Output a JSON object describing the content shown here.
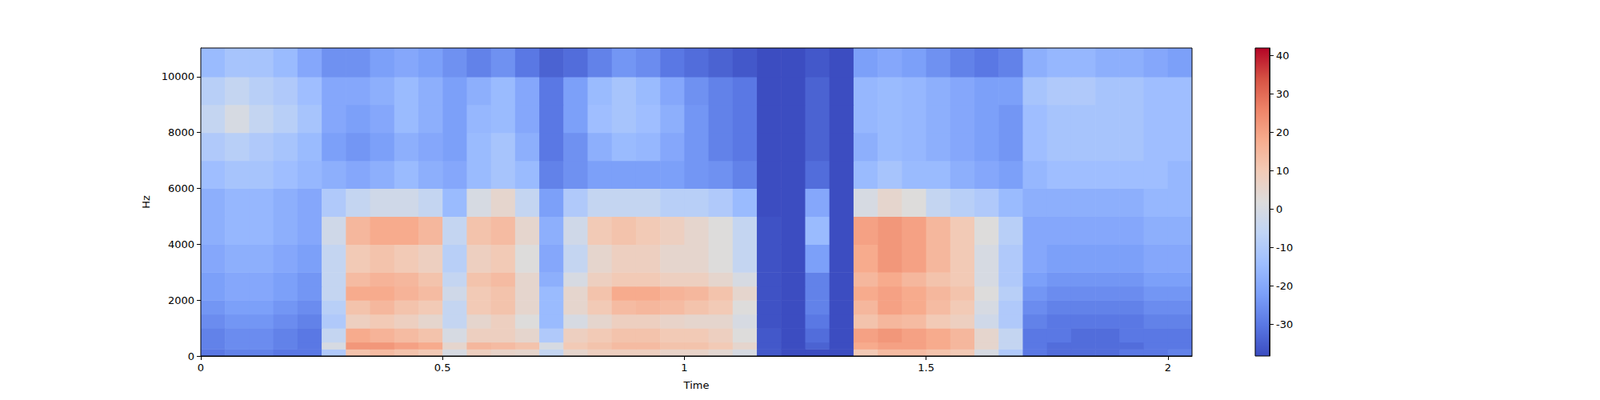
{
  "chart_data": {
    "type": "heatmap",
    "xlabel": "Time",
    "ylabel": "Hz",
    "color": "coolwarm",
    "grid": false,
    "xlim": [
      0,
      2.05
    ],
    "xticks": [
      0,
      0.5,
      1,
      1.5,
      2
    ],
    "ylim": [
      0,
      11025
    ],
    "yticks": [
      0,
      2000,
      4000,
      6000,
      8000,
      10000
    ],
    "x_edges": [
      0,
      0.05,
      0.1,
      0.15,
      0.2,
      0.25,
      0.3,
      0.35,
      0.4,
      0.45,
      0.5,
      0.55,
      0.6,
      0.65,
      0.7,
      0.75,
      0.8,
      0.85,
      0.9,
      0.95,
      1.0,
      1.05,
      1.1,
      1.15,
      1.2,
      1.25,
      1.3,
      1.35,
      1.4,
      1.45,
      1.5,
      1.55,
      1.6,
      1.65,
      1.7,
      1.75,
      1.8,
      1.85,
      1.9,
      1.95,
      2.0,
      2.05
    ],
    "y_edges": [
      0,
      250,
      500,
      1000,
      1500,
      2000,
      2500,
      3000,
      4000,
      5000,
      6000,
      7000,
      8000,
      9000,
      10000,
      11025
    ],
    "cells": [
      [
        -30,
        -28,
        -28,
        -30,
        -30,
        -10,
        12,
        14,
        12,
        10,
        0,
        8,
        6,
        5,
        -5,
        5,
        8,
        8,
        8,
        6,
        6,
        4,
        0,
        -36,
        -38,
        -38,
        -38,
        10,
        14,
        14,
        12,
        10,
        0,
        -10,
        -30,
        -32,
        -32,
        -32,
        -30,
        -30,
        -28
      ],
      [
        -28,
        -26,
        -26,
        -28,
        -30,
        0,
        22,
        22,
        20,
        18,
        5,
        15,
        14,
        12,
        0,
        10,
        12,
        14,
        14,
        12,
        12,
        10,
        5,
        -36,
        -38,
        -34,
        -38,
        18,
        20,
        20,
        18,
        15,
        5,
        -5,
        -30,
        -32,
        -32,
        -32,
        -32,
        -30,
        -30
      ],
      [
        -28,
        -26,
        -26,
        -28,
        -30,
        -5,
        18,
        16,
        14,
        12,
        0,
        8,
        8,
        5,
        -10,
        8,
        10,
        12,
        12,
        10,
        10,
        8,
        2,
        -36,
        -38,
        -32,
        -38,
        20,
        22,
        20,
        18,
        15,
        5,
        -5,
        -30,
        -30,
        -32,
        -32,
        -30,
        -30,
        -30
      ],
      [
        -26,
        -24,
        -24,
        -26,
        -28,
        -10,
        8,
        10,
        8,
        5,
        -5,
        5,
        8,
        2,
        -15,
        0,
        5,
        8,
        8,
        6,
        5,
        5,
        0,
        -37,
        -38,
        -30,
        -38,
        12,
        15,
        14,
        10,
        8,
        -2,
        -10,
        -28,
        -30,
        -30,
        -30,
        -30,
        -28,
        -28
      ],
      [
        -24,
        -22,
        -22,
        -24,
        -26,
        -8,
        12,
        15,
        12,
        10,
        -5,
        10,
        12,
        5,
        -15,
        5,
        10,
        14,
        15,
        14,
        12,
        10,
        2,
        -37,
        -38,
        -28,
        -38,
        15,
        20,
        18,
        14,
        10,
        0,
        -10,
        -26,
        -28,
        -28,
        -28,
        -28,
        -26,
        -26
      ],
      [
        -22,
        -20,
        -20,
        -22,
        -24,
        -5,
        18,
        18,
        16,
        14,
        -2,
        10,
        12,
        5,
        -15,
        5,
        12,
        18,
        18,
        16,
        15,
        12,
        5,
        -37,
        -38,
        -28,
        -38,
        18,
        20,
        18,
        15,
        12,
        2,
        -8,
        -24,
        -26,
        -26,
        -26,
        -26,
        -24,
        -24
      ],
      [
        -22,
        -20,
        -20,
        -22,
        -24,
        -5,
        14,
        16,
        15,
        12,
        -5,
        12,
        14,
        5,
        -18,
        0,
        8,
        10,
        10,
        8,
        8,
        5,
        0,
        -37,
        -38,
        -28,
        -38,
        15,
        18,
        15,
        12,
        10,
        0,
        -10,
        -22,
        -24,
        -24,
        -24,
        -24,
        -22,
        -22
      ],
      [
        -20,
        -18,
        -18,
        -20,
        -22,
        -5,
        10,
        12,
        10,
        8,
        -8,
        8,
        10,
        2,
        -20,
        -5,
        5,
        8,
        8,
        5,
        5,
        2,
        -5,
        -37,
        -38,
        -22,
        -38,
        18,
        22,
        20,
        15,
        10,
        0,
        -10,
        -20,
        -22,
        -22,
        -22,
        -22,
        -20,
        -20
      ],
      [
        -18,
        -16,
        -16,
        -18,
        -20,
        -2,
        15,
        18,
        18,
        15,
        -5,
        12,
        14,
        5,
        -18,
        -2,
        10,
        12,
        10,
        8,
        5,
        2,
        -5,
        -37,
        -38,
        -15,
        -38,
        20,
        22,
        20,
        15,
        10,
        2,
        -8,
        -20,
        -20,
        -20,
        -20,
        -20,
        -18,
        -18
      ],
      [
        -18,
        -16,
        -16,
        -18,
        -20,
        -10,
        -5,
        -2,
        -2,
        -5,
        -15,
        0,
        5,
        -5,
        -22,
        -10,
        -5,
        -5,
        -5,
        -8,
        -8,
        -10,
        -15,
        -38,
        -38,
        -20,
        -38,
        0,
        5,
        2,
        -5,
        -8,
        -10,
        -15,
        -18,
        -18,
        -18,
        -18,
        -18,
        -16,
        -16
      ],
      [
        -14,
        -12,
        -12,
        -14,
        -16,
        -18,
        -20,
        -18,
        -15,
        -18,
        -20,
        -15,
        -12,
        -15,
        -28,
        -25,
        -22,
        -22,
        -22,
        -22,
        -24,
        -25,
        -28,
        -38,
        -38,
        -32,
        -38,
        -15,
        -12,
        -15,
        -15,
        -18,
        -20,
        -22,
        -16,
        -14,
        -14,
        -14,
        -14,
        -14,
        -16
      ],
      [
        -10,
        -8,
        -10,
        -12,
        -15,
        -22,
        -24,
        -22,
        -18,
        -20,
        -22,
        -15,
        -12,
        -18,
        -30,
        -25,
        -18,
        -15,
        -16,
        -20,
        -24,
        -28,
        -30,
        -38,
        -38,
        -34,
        -38,
        -18,
        -15,
        -16,
        -18,
        -20,
        -22,
        -24,
        -14,
        -12,
        -12,
        -12,
        -12,
        -14,
        -14
      ],
      [
        -5,
        0,
        -5,
        -8,
        -12,
        -20,
        -22,
        -20,
        -15,
        -18,
        -22,
        -16,
        -15,
        -20,
        -30,
        -22,
        -14,
        -12,
        -14,
        -18,
        -24,
        -28,
        -30,
        -38,
        -38,
        -34,
        -38,
        -16,
        -15,
        -16,
        -18,
        -20,
        -22,
        -24,
        -14,
        -12,
        -12,
        -12,
        -12,
        -14,
        -14
      ],
      [
        -8,
        -5,
        -8,
        -10,
        -14,
        -20,
        -20,
        -18,
        -15,
        -18,
        -22,
        -18,
        -15,
        -20,
        -30,
        -22,
        -15,
        -12,
        -15,
        -20,
        -25,
        -28,
        -30,
        -38,
        -38,
        -34,
        -38,
        -16,
        -15,
        -16,
        -18,
        -20,
        -22,
        -22,
        -12,
        -10,
        -10,
        -12,
        -12,
        -14,
        -14
      ],
      [
        -15,
        -12,
        -12,
        -15,
        -20,
        -25,
        -25,
        -22,
        -20,
        -22,
        -25,
        -28,
        -25,
        -30,
        -34,
        -32,
        -28,
        -24,
        -26,
        -30,
        -32,
        -34,
        -36,
        -38,
        -38,
        -36,
        -38,
        -22,
        -20,
        -22,
        -25,
        -28,
        -30,
        -28,
        -18,
        -16,
        -16,
        -18,
        -18,
        -20,
        -22
      ]
    ],
    "colorbar_range": [
      -38.2,
      41.9
    ],
    "colorbar_ticks": [
      -30,
      -20,
      -10,
      0,
      10,
      20,
      30,
      40
    ]
  }
}
